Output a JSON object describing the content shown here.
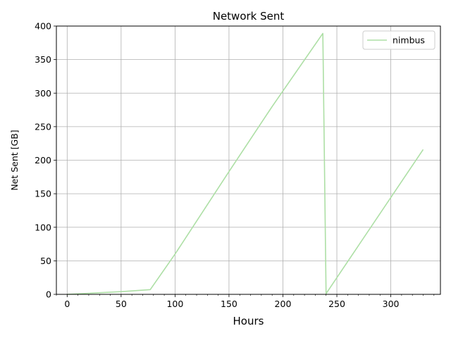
{
  "chart_data": {
    "type": "line",
    "title": "Network Sent",
    "xlabel": "Hours",
    "ylabel": "Net Sent [GB]",
    "xlim": [
      -10,
      346
    ],
    "ylim": [
      0,
      400
    ],
    "xticks": [
      0,
      50,
      100,
      150,
      200,
      250,
      300
    ],
    "yticks": [
      0,
      50,
      100,
      150,
      200,
      250,
      300,
      350,
      400
    ],
    "grid": true,
    "legend_position": "upper right",
    "series": [
      {
        "name": "nimbus",
        "color": "#addfa5",
        "x": [
          0,
          50,
          77,
          100,
          150,
          190,
          237,
          240,
          330
        ],
        "y": [
          0,
          4,
          7,
          60,
          183,
          280,
          389,
          1,
          216
        ]
      }
    ]
  }
}
